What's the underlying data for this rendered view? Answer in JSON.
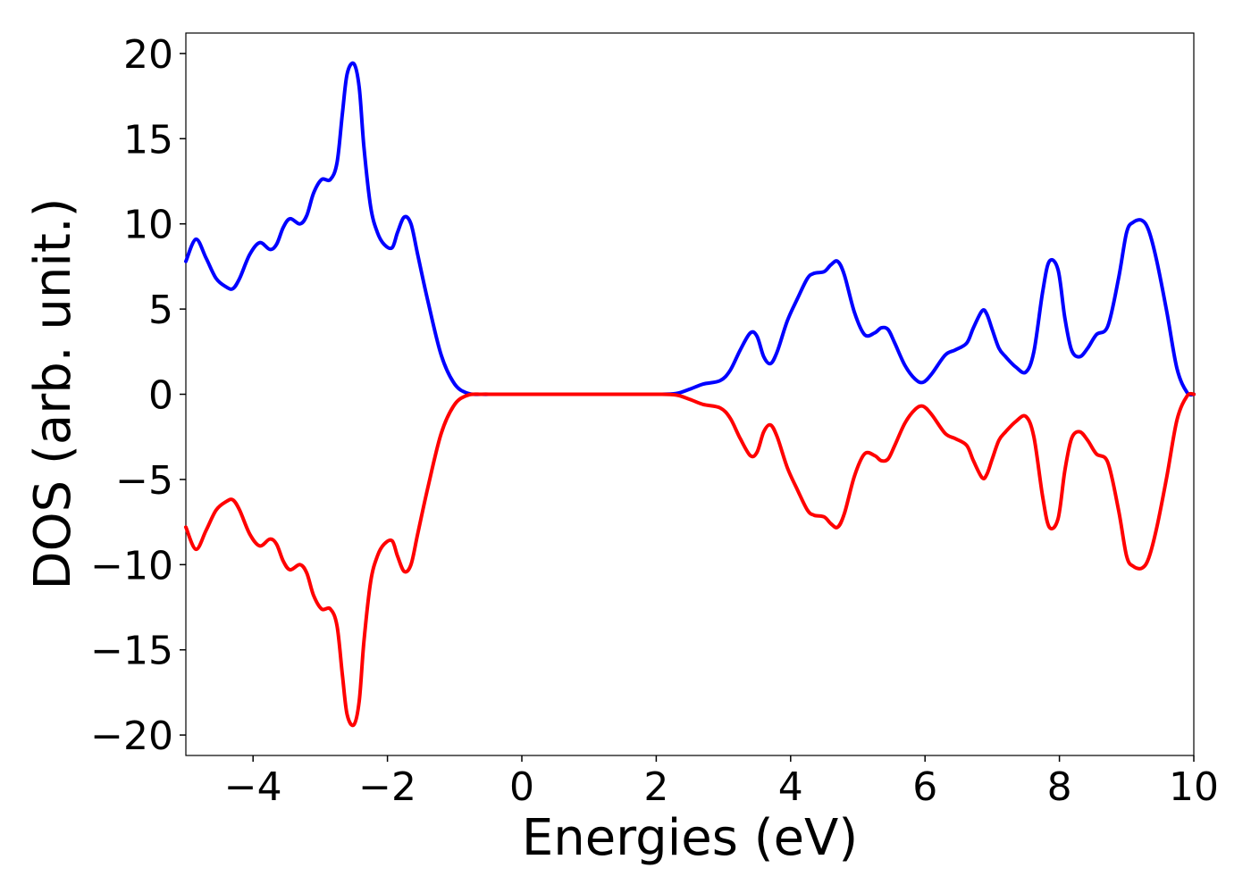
{
  "chart_data": {
    "type": "line",
    "title": "",
    "xlabel": "Energies (eV)",
    "ylabel": "DOS (arb. unit.)",
    "xlim": [
      -5,
      10
    ],
    "ylim": [
      -21.2,
      21.2
    ],
    "grid": false,
    "legend": "none",
    "x_ticks": [
      -4,
      -2,
      0,
      2,
      4,
      6,
      8,
      10
    ],
    "x_tick_labels": [
      "−4",
      "−2",
      "0",
      "2",
      "4",
      "6",
      "8",
      "10"
    ],
    "y_ticks": [
      20,
      15,
      10,
      5,
      0,
      -5,
      -10,
      -15,
      -20
    ],
    "y_tick_labels": [
      "20",
      "15",
      "10",
      "5",
      "0",
      "−5",
      "−10",
      "−15",
      "−20"
    ],
    "series": [
      {
        "color": "#0000ff",
        "x": [
          -5.0,
          -4.85,
          -4.7,
          -4.55,
          -4.4,
          -4.3,
          -4.2,
          -4.05,
          -3.9,
          -3.75,
          -3.65,
          -3.55,
          -3.45,
          -3.3,
          -3.2,
          -3.1,
          -2.98,
          -2.85,
          -2.75,
          -2.67,
          -2.6,
          -2.5,
          -2.42,
          -2.35,
          -2.25,
          -2.15,
          -2.05,
          -1.93,
          -1.85,
          -1.75,
          -1.65,
          -1.55,
          -1.4,
          -1.2,
          -1.0,
          -0.8,
          -0.6,
          -0.4,
          0.0,
          1.0,
          2.0,
          2.3,
          2.5,
          2.7,
          2.95,
          3.1,
          3.25,
          3.4,
          3.5,
          3.6,
          3.7,
          3.8,
          3.95,
          4.1,
          4.25,
          4.35,
          4.5,
          4.6,
          4.7,
          4.8,
          4.95,
          5.1,
          5.25,
          5.35,
          5.45,
          5.55,
          5.7,
          5.85,
          5.97,
          6.1,
          6.3,
          6.45,
          6.62,
          6.72,
          6.85,
          6.92,
          7.0,
          7.1,
          7.2,
          7.35,
          7.5,
          7.62,
          7.75,
          7.85,
          7.98,
          8.08,
          8.18,
          8.3,
          8.42,
          8.55,
          8.72,
          8.88,
          9.0,
          9.1,
          9.23,
          9.33,
          9.45,
          9.6,
          9.75,
          9.9,
          10.0
        ],
        "y": [
          7.8,
          9.1,
          8.0,
          6.8,
          6.3,
          6.2,
          6.8,
          8.2,
          8.9,
          8.5,
          8.8,
          9.8,
          10.3,
          10.0,
          10.5,
          11.8,
          12.6,
          12.6,
          13.6,
          16.5,
          18.8,
          19.4,
          18.0,
          14.5,
          11.0,
          9.5,
          8.8,
          8.6,
          9.5,
          10.4,
          10.0,
          8.2,
          5.5,
          2.3,
          0.6,
          0.05,
          0.0,
          0.0,
          0.0,
          0.0,
          0.0,
          0.05,
          0.3,
          0.6,
          0.8,
          1.4,
          2.6,
          3.6,
          3.4,
          2.2,
          1.8,
          2.5,
          4.3,
          5.6,
          6.8,
          7.1,
          7.2,
          7.6,
          7.8,
          7.0,
          4.8,
          3.5,
          3.6,
          3.9,
          3.8,
          3.0,
          1.7,
          0.9,
          0.7,
          1.2,
          2.3,
          2.6,
          3.0,
          3.9,
          4.9,
          4.7,
          3.8,
          2.7,
          2.2,
          1.6,
          1.3,
          2.5,
          6.0,
          7.8,
          7.3,
          4.5,
          2.6,
          2.2,
          2.7,
          3.5,
          4.0,
          6.8,
          9.5,
          10.1,
          10.2,
          9.6,
          7.8,
          4.8,
          1.5,
          0.1,
          0.0
        ]
      },
      {
        "color": "#ff0000",
        "x": [
          -5.0,
          -4.85,
          -4.7,
          -4.55,
          -4.4,
          -4.3,
          -4.2,
          -4.05,
          -3.9,
          -3.75,
          -3.65,
          -3.55,
          -3.45,
          -3.3,
          -3.2,
          -3.1,
          -2.98,
          -2.85,
          -2.75,
          -2.67,
          -2.6,
          -2.5,
          -2.42,
          -2.35,
          -2.25,
          -2.15,
          -2.05,
          -1.93,
          -1.85,
          -1.75,
          -1.65,
          -1.55,
          -1.4,
          -1.2,
          -1.0,
          -0.8,
          -0.6,
          -0.4,
          0.0,
          1.0,
          2.0,
          2.3,
          2.5,
          2.7,
          2.95,
          3.1,
          3.25,
          3.4,
          3.5,
          3.6,
          3.7,
          3.8,
          3.95,
          4.1,
          4.25,
          4.35,
          4.5,
          4.6,
          4.7,
          4.8,
          4.95,
          5.1,
          5.25,
          5.35,
          5.45,
          5.55,
          5.7,
          5.85,
          5.97,
          6.1,
          6.3,
          6.45,
          6.62,
          6.72,
          6.85,
          6.92,
          7.0,
          7.1,
          7.2,
          7.35,
          7.5,
          7.62,
          7.75,
          7.85,
          7.98,
          8.08,
          8.18,
          8.3,
          8.42,
          8.55,
          8.72,
          8.88,
          9.0,
          9.1,
          9.23,
          9.33,
          9.45,
          9.6,
          9.75,
          9.9,
          10.0
        ],
        "y": [
          -7.8,
          -9.1,
          -8.0,
          -6.8,
          -6.3,
          -6.2,
          -6.8,
          -8.2,
          -8.9,
          -8.5,
          -8.8,
          -9.8,
          -10.3,
          -10.0,
          -10.5,
          -11.8,
          -12.6,
          -12.6,
          -13.6,
          -16.5,
          -18.8,
          -19.4,
          -18.0,
          -14.5,
          -11.0,
          -9.5,
          -8.8,
          -8.6,
          -9.5,
          -10.4,
          -10.0,
          -8.2,
          -5.5,
          -2.3,
          -0.6,
          -0.05,
          0.0,
          0.0,
          0.0,
          0.0,
          0.0,
          -0.05,
          -0.3,
          -0.6,
          -0.8,
          -1.4,
          -2.6,
          -3.6,
          -3.4,
          -2.2,
          -1.8,
          -2.5,
          -4.3,
          -5.6,
          -6.8,
          -7.1,
          -7.2,
          -7.6,
          -7.8,
          -7.0,
          -4.8,
          -3.5,
          -3.6,
          -3.9,
          -3.8,
          -3.0,
          -1.7,
          -0.9,
          -0.7,
          -1.2,
          -2.3,
          -2.6,
          -3.0,
          -3.9,
          -4.9,
          -4.7,
          -3.8,
          -2.7,
          -2.2,
          -1.6,
          -1.3,
          -2.5,
          -6.0,
          -7.8,
          -7.3,
          -4.5,
          -2.6,
          -2.2,
          -2.7,
          -3.5,
          -4.0,
          -6.8,
          -9.5,
          -10.1,
          -10.2,
          -9.6,
          -7.8,
          -4.8,
          -1.5,
          -0.1,
          0.0
        ]
      }
    ]
  }
}
